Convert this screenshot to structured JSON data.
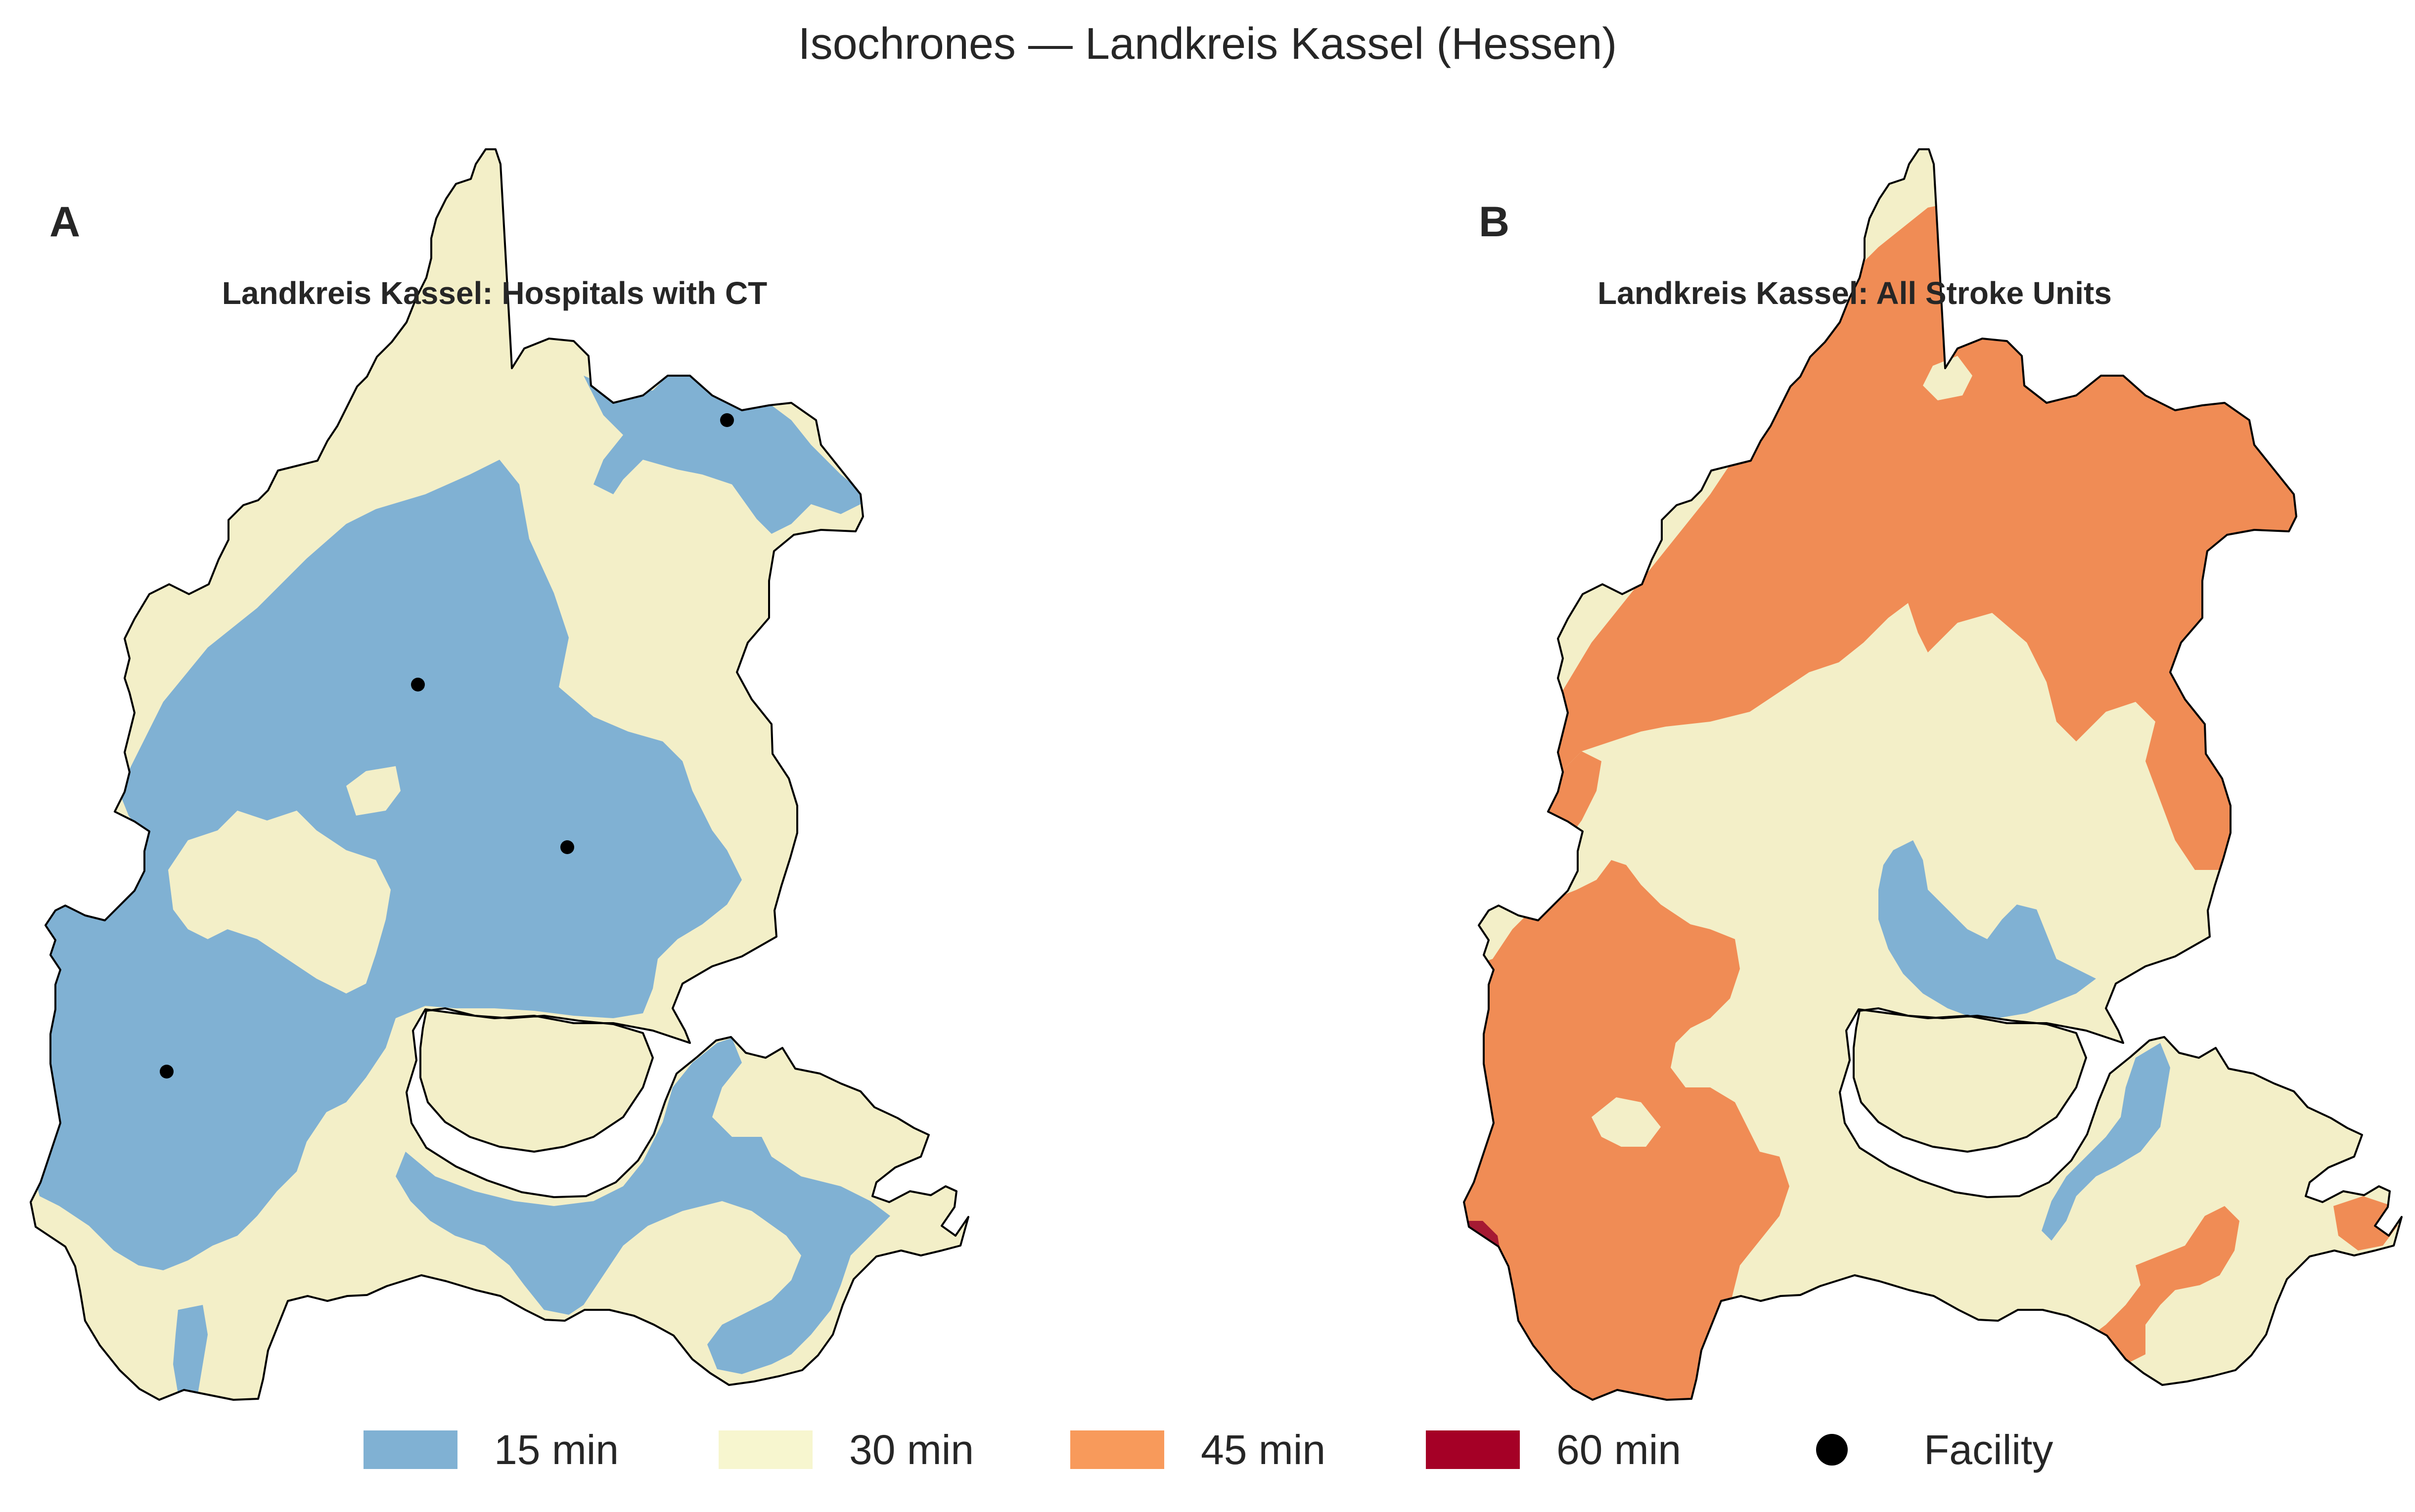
{
  "figure": {
    "title": "Isochrones — Landkreis Kassel (Hessen)"
  },
  "panels": [
    {
      "letter": "A",
      "title": "Landkreis Kassel: Hospitals with CT",
      "facility_count": 4,
      "dominant_band": "15 min"
    },
    {
      "letter": "B",
      "title": "Landkreis Kassel: All Stroke Units",
      "facility_count": 0,
      "dominant_band": "30 min"
    }
  ],
  "legend": {
    "items": [
      {
        "label": "15 min",
        "color": "#80b1d3",
        "icon": "swatch"
      },
      {
        "label": "30 min",
        "color": "#f7f6cf",
        "icon": "swatch"
      },
      {
        "label": "45 min",
        "color": "#f89a5b",
        "icon": "swatch"
      },
      {
        "label": "60 min",
        "color": "#a50026",
        "icon": "swatch"
      },
      {
        "label": "Facility",
        "color": "#000000",
        "icon": "dot"
      }
    ]
  },
  "map_colors": {
    "band_15": "#80b1d3",
    "band_30": "#f3efc8",
    "band_45": "#f08c55",
    "band_60": "#a51a33",
    "outline": "#000000",
    "facility": "#000000"
  }
}
